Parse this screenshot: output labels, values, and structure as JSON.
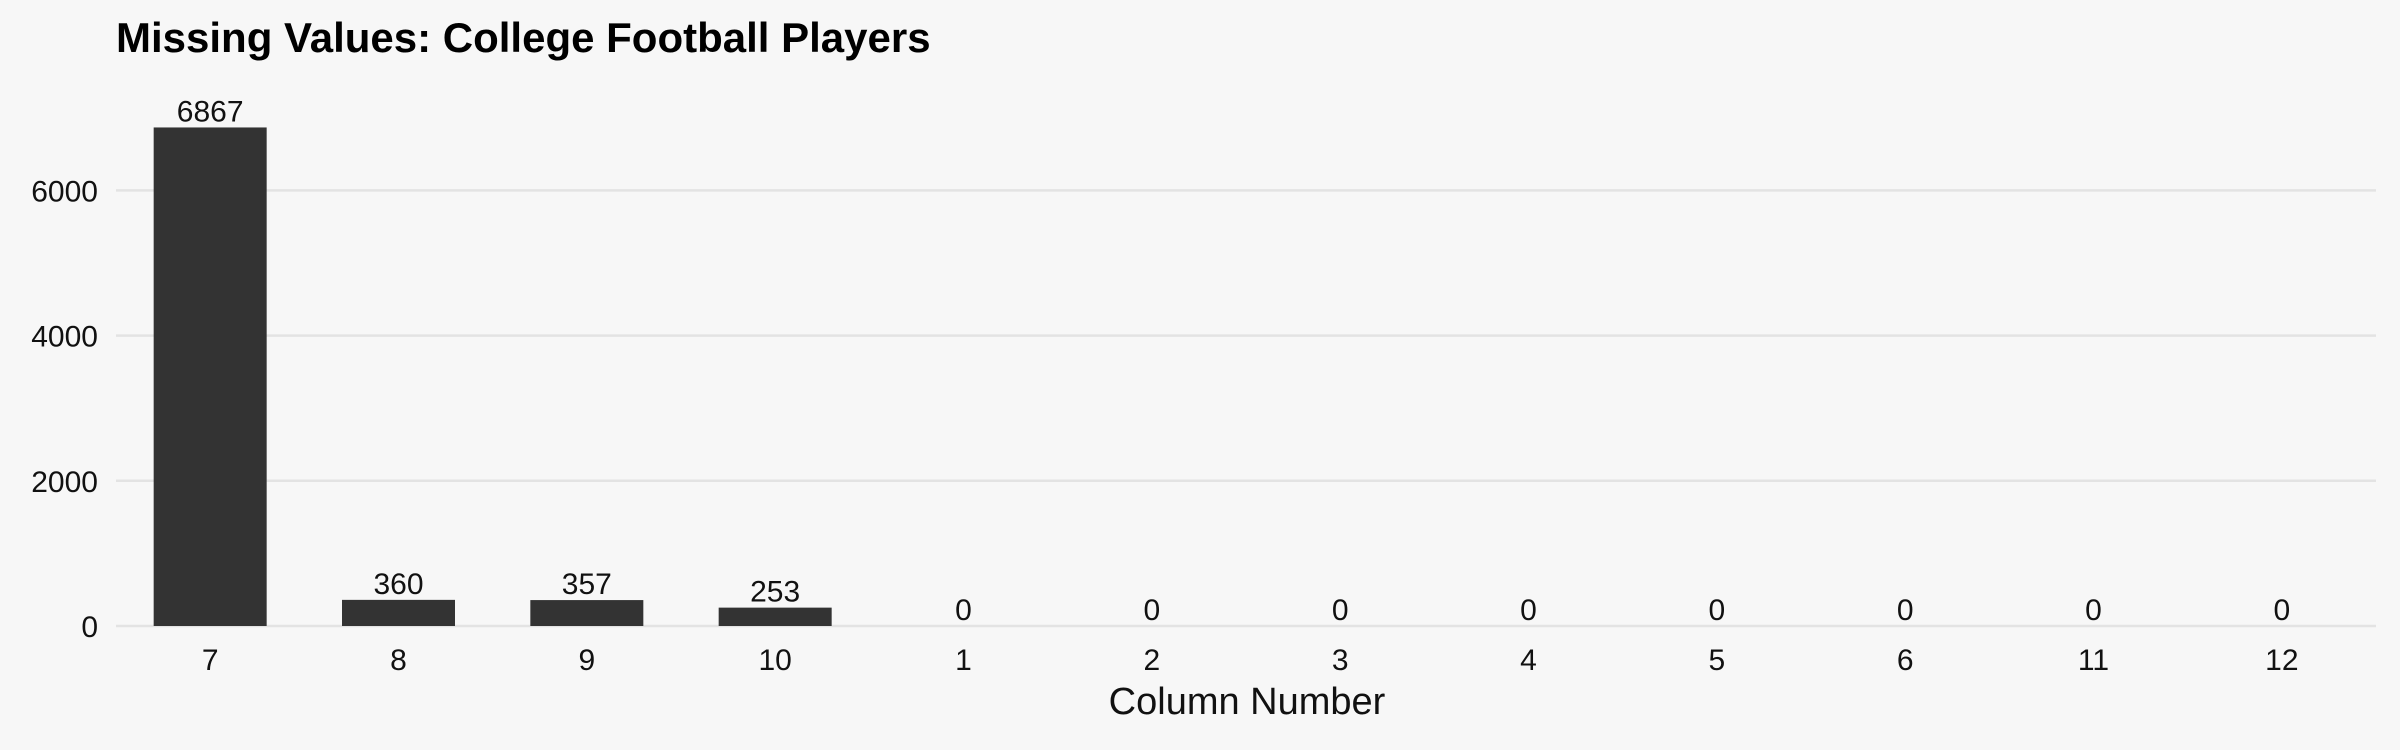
{
  "chart_data": {
    "type": "bar",
    "title": "Missing Values: College Football Players",
    "xlabel": "Column Number",
    "ylabel": "",
    "categories": [
      "7",
      "8",
      "9",
      "10",
      "1",
      "2",
      "3",
      "4",
      "5",
      "6",
      "11",
      "12"
    ],
    "values": [
      6867,
      360,
      357,
      253,
      0,
      0,
      0,
      0,
      0,
      0,
      0,
      0
    ],
    "data_labels": [
      "6867",
      "360",
      "357",
      "253",
      "0",
      "0",
      "0",
      "0",
      "0",
      "0",
      "0",
      "0"
    ],
    "yticks": [
      0,
      2000,
      4000,
      6000
    ],
    "ytick_labels": [
      "0",
      "2000",
      "4000",
      "6000"
    ],
    "ylim": [
      0,
      7210
    ],
    "grid": true,
    "legend": "none",
    "bar_color": "#333333",
    "background_color": "#f7f7f7",
    "grid_color": "#e3e3e3"
  }
}
